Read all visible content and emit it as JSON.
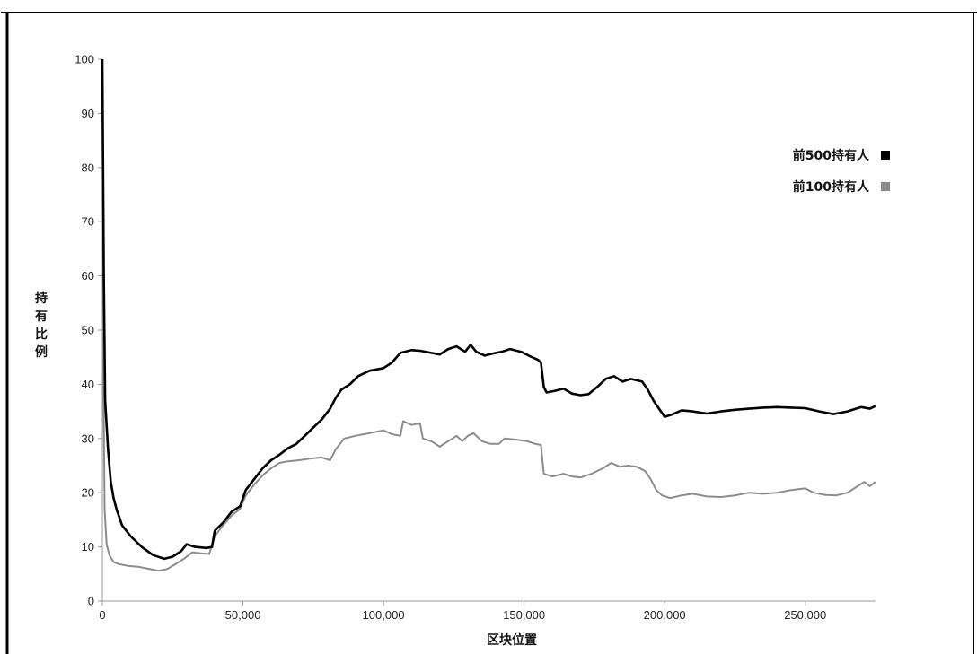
{
  "chart_data": {
    "type": "line",
    "xlabel": "区块位置",
    "ylabel": "持有比例",
    "xlim": [
      0,
      275000
    ],
    "ylim": [
      0,
      100
    ],
    "x_ticks": [
      0,
      50000,
      100000,
      150000,
      200000,
      250000
    ],
    "x_tick_labels": [
      "0",
      "50,000",
      "100,000",
      "150,000",
      "200,000",
      "250,000"
    ],
    "y_ticks": [
      0,
      10,
      20,
      30,
      40,
      50,
      60,
      70,
      80,
      90,
      100
    ],
    "y_tick_labels": [
      "0",
      "10",
      "20",
      "30",
      "40",
      "50",
      "60",
      "70",
      "80",
      "90",
      "100"
    ],
    "grid": false,
    "legend_position": "top-right",
    "series": [
      {
        "name": "前500持有人",
        "color": "#000000",
        "points": [
          [
            0,
            100
          ],
          [
            500,
            60
          ],
          [
            1000,
            37
          ],
          [
            2000,
            28
          ],
          [
            3000,
            22
          ],
          [
            4000,
            19
          ],
          [
            5000,
            17
          ],
          [
            7000,
            14
          ],
          [
            10000,
            12
          ],
          [
            14000,
            10
          ],
          [
            18000,
            8.5
          ],
          [
            22000,
            7.8
          ],
          [
            25000,
            8.2
          ],
          [
            28000,
            9.2
          ],
          [
            30000,
            10.5
          ],
          [
            33000,
            10
          ],
          [
            37000,
            9.8
          ],
          [
            39000,
            10
          ],
          [
            40000,
            13
          ],
          [
            43000,
            14.5
          ],
          [
            46000,
            16.5
          ],
          [
            49000,
            17.5
          ],
          [
            51000,
            20.5
          ],
          [
            54000,
            22.5
          ],
          [
            57000,
            24.5
          ],
          [
            60000,
            26
          ],
          [
            63000,
            27
          ],
          [
            66000,
            28.2
          ],
          [
            69000,
            29
          ],
          [
            72000,
            30.5
          ],
          [
            75000,
            32
          ],
          [
            78000,
            33.5
          ],
          [
            81000,
            35.5
          ],
          [
            83000,
            37.5
          ],
          [
            85000,
            39
          ],
          [
            88000,
            40
          ],
          [
            91000,
            41.5
          ],
          [
            95000,
            42.5
          ],
          [
            100000,
            43
          ],
          [
            103000,
            44
          ],
          [
            106000,
            45.8
          ],
          [
            110000,
            46.3
          ],
          [
            113000,
            46.2
          ],
          [
            117000,
            45.8
          ],
          [
            120000,
            45.5
          ],
          [
            123000,
            46.5
          ],
          [
            126000,
            47
          ],
          [
            129000,
            46
          ],
          [
            131000,
            47.3
          ],
          [
            133000,
            46
          ],
          [
            136000,
            45.3
          ],
          [
            139000,
            45.7
          ],
          [
            142000,
            46
          ],
          [
            145000,
            46.5
          ],
          [
            149000,
            46
          ],
          [
            152000,
            45.2
          ],
          [
            155000,
            44.5
          ],
          [
            156000,
            44
          ],
          [
            157000,
            39.5
          ],
          [
            158000,
            38.5
          ],
          [
            161000,
            38.8
          ],
          [
            164000,
            39.2
          ],
          [
            167000,
            38.3
          ],
          [
            170000,
            38
          ],
          [
            173000,
            38.2
          ],
          [
            176000,
            39.5
          ],
          [
            179000,
            41
          ],
          [
            182000,
            41.5
          ],
          [
            185000,
            40.5
          ],
          [
            188000,
            41
          ],
          [
            192000,
            40.5
          ],
          [
            194000,
            39
          ],
          [
            196000,
            37
          ],
          [
            198000,
            35.5
          ],
          [
            200000,
            34
          ],
          [
            203000,
            34.5
          ],
          [
            206000,
            35.2
          ],
          [
            210000,
            35
          ],
          [
            215000,
            34.6
          ],
          [
            220000,
            35
          ],
          [
            225000,
            35.3
          ],
          [
            230000,
            35.5
          ],
          [
            235000,
            35.7
          ],
          [
            240000,
            35.8
          ],
          [
            245000,
            35.7
          ],
          [
            250000,
            35.6
          ],
          [
            255000,
            35
          ],
          [
            260000,
            34.5
          ],
          [
            265000,
            35
          ],
          [
            268000,
            35.5
          ],
          [
            270000,
            35.8
          ],
          [
            273000,
            35.5
          ],
          [
            275000,
            36
          ]
        ]
      },
      {
        "name": "前100持有人",
        "color": "#8c8c8c",
        "points": [
          [
            0,
            100
          ],
          [
            400,
            40
          ],
          [
            800,
            17
          ],
          [
            1500,
            10.5
          ],
          [
            2500,
            8.5
          ],
          [
            4000,
            7.2
          ],
          [
            6000,
            6.8
          ],
          [
            9000,
            6.5
          ],
          [
            13000,
            6.3
          ],
          [
            17000,
            5.9
          ],
          [
            20000,
            5.6
          ],
          [
            23000,
            5.9
          ],
          [
            26000,
            6.8
          ],
          [
            29000,
            7.8
          ],
          [
            32000,
            9
          ],
          [
            35000,
            8.8
          ],
          [
            38000,
            8.7
          ],
          [
            40000,
            12
          ],
          [
            43000,
            14
          ],
          [
            46000,
            15.8
          ],
          [
            49000,
            17
          ],
          [
            51000,
            19.5
          ],
          [
            54000,
            21.5
          ],
          [
            57000,
            23.2
          ],
          [
            60000,
            24.5
          ],
          [
            63000,
            25.5
          ],
          [
            66000,
            25.8
          ],
          [
            70000,
            26
          ],
          [
            74000,
            26.3
          ],
          [
            78000,
            26.5
          ],
          [
            81000,
            26
          ],
          [
            83000,
            28
          ],
          [
            86000,
            30
          ],
          [
            90000,
            30.5
          ],
          [
            95000,
            31
          ],
          [
            100000,
            31.5
          ],
          [
            103000,
            30.8
          ],
          [
            106000,
            30.5
          ],
          [
            107000,
            33.2
          ],
          [
            110000,
            32.5
          ],
          [
            113000,
            32.8
          ],
          [
            114000,
            30
          ],
          [
            117000,
            29.5
          ],
          [
            120000,
            28.5
          ],
          [
            123000,
            29.5
          ],
          [
            126000,
            30.5
          ],
          [
            128000,
            29.5
          ],
          [
            130000,
            30.5
          ],
          [
            132000,
            31
          ],
          [
            135000,
            29.5
          ],
          [
            138000,
            29
          ],
          [
            141000,
            29
          ],
          [
            143000,
            30
          ],
          [
            147000,
            29.8
          ],
          [
            151000,
            29.5
          ],
          [
            154000,
            29
          ],
          [
            156000,
            28.8
          ],
          [
            157000,
            23.5
          ],
          [
            160000,
            23
          ],
          [
            164000,
            23.5
          ],
          [
            167000,
            23
          ],
          [
            170000,
            22.8
          ],
          [
            174000,
            23.5
          ],
          [
            178000,
            24.5
          ],
          [
            181000,
            25.5
          ],
          [
            184000,
            24.8
          ],
          [
            187000,
            25
          ],
          [
            190000,
            24.8
          ],
          [
            193000,
            24
          ],
          [
            195000,
            22.5
          ],
          [
            197000,
            20.5
          ],
          [
            199000,
            19.5
          ],
          [
            202000,
            19
          ],
          [
            206000,
            19.5
          ],
          [
            210000,
            19.8
          ],
          [
            215000,
            19.3
          ],
          [
            220000,
            19.2
          ],
          [
            225000,
            19.5
          ],
          [
            230000,
            20
          ],
          [
            235000,
            19.8
          ],
          [
            240000,
            20
          ],
          [
            245000,
            20.5
          ],
          [
            250000,
            20.8
          ],
          [
            253000,
            20
          ],
          [
            257000,
            19.6
          ],
          [
            261000,
            19.5
          ],
          [
            265000,
            20
          ],
          [
            268000,
            21
          ],
          [
            271000,
            22
          ],
          [
            273000,
            21.2
          ],
          [
            275000,
            22
          ]
        ]
      }
    ]
  }
}
